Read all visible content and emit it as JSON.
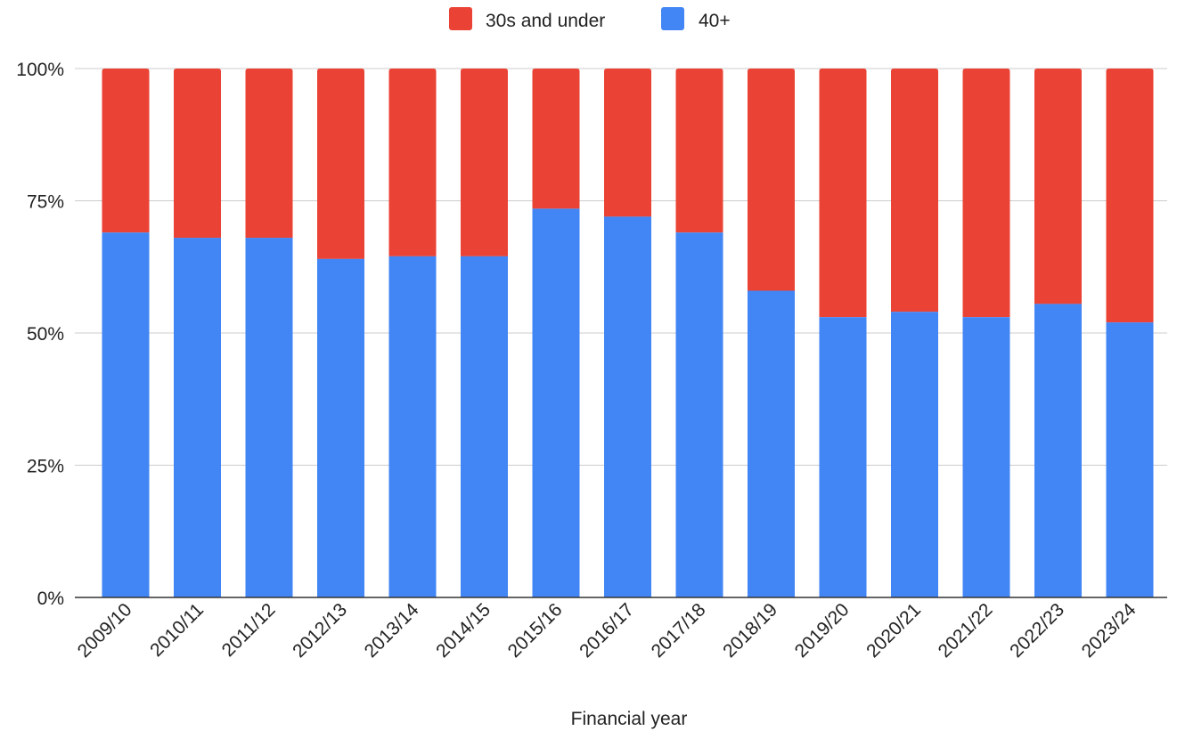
{
  "chart_data": {
    "type": "bar",
    "stacked": true,
    "normalized": true,
    "categories": [
      "2009/10",
      "2010/11",
      "2011/12",
      "2012/13",
      "2013/14",
      "2014/15",
      "2015/16",
      "2016/17",
      "2017/18",
      "2018/19",
      "2019/20",
      "2020/21",
      "2021/22",
      "2022/23",
      "2023/24"
    ],
    "series": [
      {
        "name": "40+",
        "color": "#4285f4",
        "values": [
          69,
          68,
          68,
          64,
          64.5,
          64.5,
          73.5,
          72,
          69,
          58,
          53,
          54,
          53,
          55.5,
          52
        ]
      },
      {
        "name": "30s and under",
        "color": "#ea4335",
        "values": [
          31,
          32,
          32,
          36,
          35.5,
          35.5,
          26.5,
          28,
          31,
          42,
          47,
          46,
          47,
          44.5,
          48
        ]
      }
    ],
    "legend": {
      "position": "top",
      "entries": [
        "30s and under",
        "40+"
      ]
    },
    "xlabel": "Financial year",
    "ylabel": "",
    "ylim": [
      0,
      100
    ],
    "yticks": [
      "0%",
      "25%",
      "50%",
      "75%",
      "100%"
    ],
    "grid": true
  }
}
